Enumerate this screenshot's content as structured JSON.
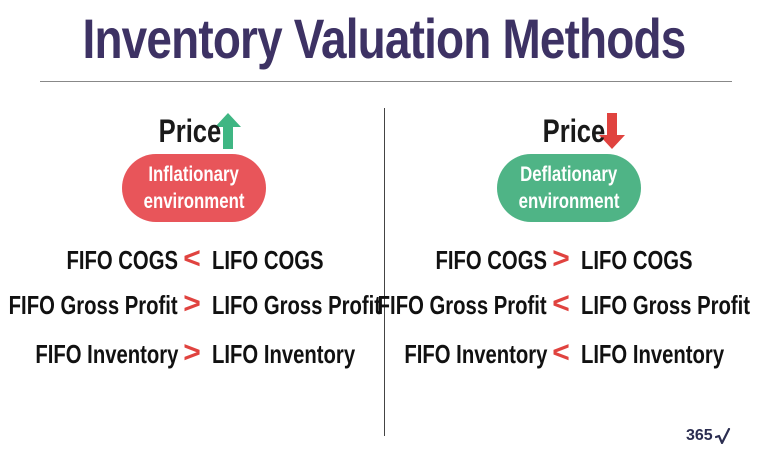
{
  "title": "Inventory Valuation Methods",
  "colors": {
    "title": "#3d3264",
    "up_arrow": "#3fb683",
    "down_arrow": "#e0433f",
    "inflationary_pill": "#e8555a",
    "deflationary_pill": "#4fb486",
    "less_than": "#e0433f",
    "greater_than": "#e0433f"
  },
  "left": {
    "price_label": "Price",
    "arrow_icon": "up-arrow-icon",
    "pill_line1": "Inflationary",
    "pill_line2": "environment",
    "rows": [
      {
        "lhs": "FIFO COGS",
        "op": "<",
        "rhs": "LIFO COGS"
      },
      {
        "lhs": "FIFO Gross Profit",
        "op": ">",
        "rhs": "LIFO Gross Profit"
      },
      {
        "lhs": "FIFO Inventory",
        "op": ">",
        "rhs": "LIFO Inventory"
      }
    ]
  },
  "right": {
    "price_label": "Price",
    "arrow_icon": "down-arrow-icon",
    "pill_line1": "Deflationary",
    "pill_line2": "environment",
    "rows": [
      {
        "lhs": "FIFO COGS",
        "op": ">",
        "rhs": "LIFO COGS"
      },
      {
        "lhs": "FIFO Gross Profit",
        "op": "<",
        "rhs": "LIFO Gross Profit"
      },
      {
        "lhs": "FIFO Inventory",
        "op": "<",
        "rhs": "LIFO Inventory"
      }
    ]
  },
  "logo": {
    "text": "365",
    "icon": "checkmark-root-icon"
  }
}
